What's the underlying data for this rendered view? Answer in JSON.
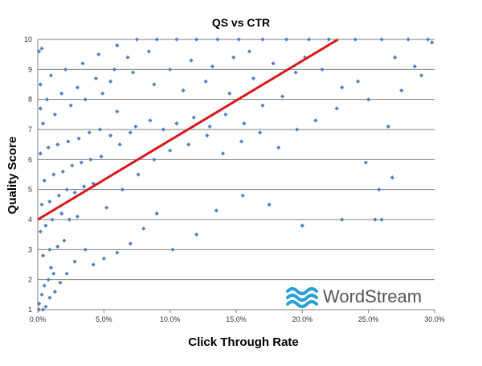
{
  "chart_data": {
    "type": "scatter",
    "title": "QS vs CTR",
    "xlabel": "Click Through Rate",
    "ylabel": "Quality Score",
    "xlim": [
      0.0,
      30.0
    ],
    "ylim": [
      1,
      10
    ],
    "x_unit": "%",
    "x_ticks": [
      "0.0%",
      "5.0%",
      "10.0%",
      "15.0%",
      "20.0%",
      "25.0%",
      "30.0%"
    ],
    "y_ticks": [
      "1",
      "2",
      "3",
      "4",
      "5",
      "6",
      "7",
      "8",
      "9",
      "10"
    ],
    "grid": "horizontal",
    "legend": "none",
    "marker": "diamond",
    "series": [
      {
        "values": [
          [
            0.1,
            1.2
          ],
          [
            0.3,
            1.5
          ],
          [
            0.5,
            1.8
          ],
          [
            0.8,
            2.0
          ],
          [
            1.0,
            2.4
          ],
          [
            1.2,
            2.2
          ],
          [
            0.4,
            2.8
          ],
          [
            0.9,
            3.0
          ],
          [
            1.5,
            3.1
          ],
          [
            2.0,
            3.3
          ],
          [
            0.2,
            3.6
          ],
          [
            0.6,
            3.8
          ],
          [
            1.1,
            4.0
          ],
          [
            1.8,
            4.2
          ],
          [
            2.4,
            4.0
          ],
          [
            3.0,
            4.1
          ],
          [
            0.3,
            4.5
          ],
          [
            0.9,
            4.6
          ],
          [
            1.6,
            4.8
          ],
          [
            2.2,
            5.0
          ],
          [
            2.8,
            4.9
          ],
          [
            3.5,
            5.1
          ],
          [
            4.2,
            5.2
          ],
          [
            0.5,
            5.3
          ],
          [
            1.2,
            5.5
          ],
          [
            1.9,
            5.6
          ],
          [
            2.6,
            5.8
          ],
          [
            3.3,
            5.9
          ],
          [
            4.0,
            6.0
          ],
          [
            4.8,
            6.1
          ],
          [
            0.2,
            6.2
          ],
          [
            0.8,
            6.4
          ],
          [
            1.5,
            6.5
          ],
          [
            2.3,
            6.6
          ],
          [
            3.1,
            6.7
          ],
          [
            3.9,
            6.9
          ],
          [
            4.7,
            7.0
          ],
          [
            5.5,
            6.8
          ],
          [
            6.2,
            6.5
          ],
          [
            7.0,
            6.9
          ],
          [
            0.4,
            7.2
          ],
          [
            1.3,
            7.5
          ],
          [
            2.5,
            7.8
          ],
          [
            3.6,
            8.0
          ],
          [
            4.9,
            8.2
          ],
          [
            6.0,
            7.6
          ],
          [
            7.4,
            7.1
          ],
          [
            8.5,
            7.3
          ],
          [
            9.5,
            7.0
          ],
          [
            10.5,
            7.2
          ],
          [
            11.8,
            7.4
          ],
          [
            13.0,
            7.1
          ],
          [
            14.2,
            7.5
          ],
          [
            15.6,
            7.2
          ],
          [
            17.0,
            7.8
          ],
          [
            18.5,
            8.1
          ],
          [
            0.2,
            8.5
          ],
          [
            1.0,
            8.8
          ],
          [
            2.1,
            9.0
          ],
          [
            3.4,
            9.2
          ],
          [
            4.6,
            9.5
          ],
          [
            6.0,
            9.8
          ],
          [
            7.5,
            10.0
          ],
          [
            9.0,
            10.0
          ],
          [
            10.5,
            10.0
          ],
          [
            12.0,
            10.0
          ],
          [
            13.6,
            10.0
          ],
          [
            15.2,
            10.0
          ],
          [
            17.0,
            10.0
          ],
          [
            18.8,
            10.0
          ],
          [
            20.5,
            10.0
          ],
          [
            22.0,
            10.0
          ],
          [
            24.0,
            10.0
          ],
          [
            26.0,
            10.0
          ],
          [
            28.0,
            10.0
          ],
          [
            29.5,
            10.0
          ],
          [
            0.3,
            9.7
          ],
          [
            0.1,
            9.6
          ],
          [
            5.5,
            8.6
          ],
          [
            7.2,
            8.9
          ],
          [
            8.8,
            8.5
          ],
          [
            11.0,
            8.3
          ],
          [
            12.7,
            8.6
          ],
          [
            14.5,
            8.2
          ],
          [
            16.3,
            8.7
          ],
          [
            19.5,
            8.9
          ],
          [
            21.5,
            9.0
          ],
          [
            23.0,
            8.4
          ],
          [
            25.0,
            8.0
          ],
          [
            27.5,
            8.3
          ],
          [
            29.0,
            8.8
          ],
          [
            29.8,
            9.9
          ],
          [
            26.5,
            7.1
          ],
          [
            24.8,
            5.9
          ],
          [
            25.8,
            5.0
          ],
          [
            26.8,
            5.4
          ],
          [
            25.5,
            4.0
          ],
          [
            26.0,
            4.0
          ],
          [
            23.0,
            4.0
          ],
          [
            20.0,
            3.8
          ],
          [
            17.5,
            4.5
          ],
          [
            15.5,
            4.8
          ],
          [
            13.5,
            4.3
          ],
          [
            12.0,
            3.5
          ],
          [
            10.2,
            3.0
          ],
          [
            9.0,
            4.2
          ],
          [
            8.0,
            3.7
          ],
          [
            7.0,
            3.2
          ],
          [
            6.0,
            2.9
          ],
          [
            5.0,
            2.7
          ],
          [
            4.2,
            2.5
          ],
          [
            3.6,
            3.0
          ],
          [
            2.8,
            2.6
          ],
          [
            2.2,
            2.2
          ],
          [
            1.7,
            1.9
          ],
          [
            1.3,
            1.6
          ],
          [
            0.9,
            1.4
          ],
          [
            0.6,
            1.1
          ],
          [
            0.4,
            1.0
          ],
          [
            0.1,
            1.0
          ],
          [
            5.2,
            4.4
          ],
          [
            6.4,
            5.0
          ],
          [
            7.6,
            5.5
          ],
          [
            8.8,
            6.0
          ],
          [
            10.0,
            6.3
          ],
          [
            11.4,
            6.5
          ],
          [
            12.8,
            6.8
          ],
          [
            14.0,
            6.2
          ],
          [
            15.4,
            6.6
          ],
          [
            16.8,
            6.9
          ],
          [
            18.2,
            6.4
          ],
          [
            19.6,
            7.0
          ],
          [
            21.0,
            7.3
          ],
          [
            22.6,
            7.7
          ],
          [
            24.2,
            8.6
          ],
          [
            27.0,
            9.4
          ],
          [
            28.5,
            9.1
          ],
          [
            20.2,
            9.4
          ],
          [
            17.8,
            9.2
          ],
          [
            16.0,
            9.6
          ],
          [
            14.8,
            9.4
          ],
          [
            13.2,
            9.1
          ],
          [
            11.6,
            9.3
          ],
          [
            10.0,
            9.0
          ],
          [
            8.4,
            9.6
          ],
          [
            6.8,
            9.4
          ],
          [
            5.8,
            9.0
          ],
          [
            4.4,
            8.7
          ],
          [
            3.0,
            8.4
          ],
          [
            1.8,
            8.2
          ],
          [
            0.7,
            8.0
          ],
          [
            0.2,
            7.7
          ]
        ]
      }
    ],
    "trendline": {
      "color": "#d7191c",
      "points": [
        [
          0.0,
          4.0
        ],
        [
          22.7,
          10.0
        ]
      ]
    },
    "marker_color": "#4f81bd",
    "logo": {
      "name": "wordstream-logo",
      "text": "WordStream",
      "text_color": "#555555",
      "wave_color": "#2b9fd8"
    }
  }
}
